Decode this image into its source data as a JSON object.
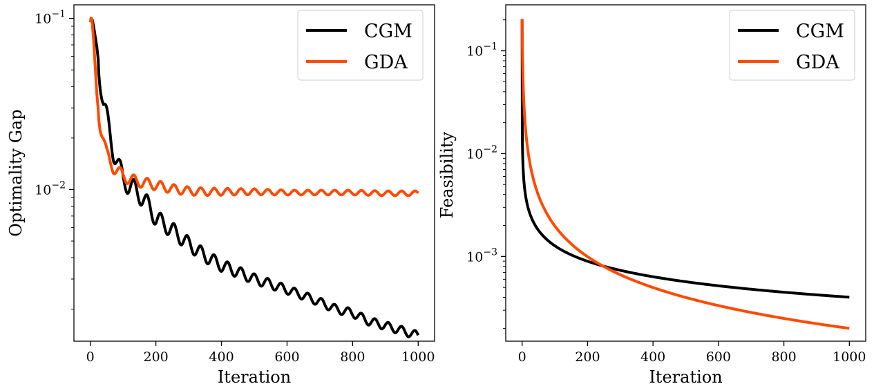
{
  "colors": {
    "CGM": "#000000",
    "GDA": "#ff4a00"
  },
  "chart_data": [
    {
      "type": "line",
      "xlabel": "Iteration",
      "ylabel": "Optimality Gap",
      "yscale": "log",
      "xlim": [
        -50,
        1050
      ],
      "ylim": [
        0.0013,
        0.12
      ],
      "xticks": [
        0,
        200,
        400,
        600,
        800,
        1000
      ],
      "yticks": [
        0.01,
        0.1
      ],
      "ytick_labels": [
        {
          "base": "10",
          "exp": "−2"
        },
        {
          "base": "10",
          "exp": "−1"
        }
      ],
      "legend_position": "top-right",
      "series": [
        {
          "name": "CGM",
          "x": [
            0,
            5,
            10,
            20,
            30,
            40,
            50,
            60,
            70,
            80,
            90,
            100,
            120,
            140,
            160,
            180,
            200,
            250,
            300,
            350,
            400,
            450,
            500,
            550,
            600,
            650,
            700,
            750,
            800,
            850,
            900,
            950,
            1000
          ],
          "y": [
            0.095,
            0.1,
            0.09,
            0.068,
            0.045,
            0.032,
            0.026,
            0.021,
            0.017,
            0.015,
            0.013,
            0.0115,
            0.0105,
            0.0098,
            0.0089,
            0.0079,
            0.0068,
            0.0058,
            0.0048,
            0.0041,
            0.0036,
            0.0033,
            0.003,
            0.0028,
            0.0026,
            0.0024,
            0.0022,
            0.002,
            0.0019,
            0.0017,
            0.0016,
            0.0015,
            0.0014
          ]
        },
        {
          "name": "GDA",
          "x": [
            0,
            3,
            6,
            10,
            15,
            20,
            25,
            30,
            40,
            50,
            60,
            70,
            80,
            90,
            100,
            120,
            140,
            160,
            180,
            200,
            250,
            300,
            350,
            400,
            450,
            500,
            600,
            700,
            800,
            900,
            1000
          ],
          "y": [
            0.095,
            0.103,
            0.094,
            0.075,
            0.052,
            0.036,
            0.028,
            0.024,
            0.02,
            0.016,
            0.0145,
            0.0135,
            0.013,
            0.0125,
            0.012,
            0.0115,
            0.0112,
            0.011,
            0.0108,
            0.0106,
            0.0101,
            0.0098,
            0.0097,
            0.0097,
            0.0097,
            0.0097,
            0.0096,
            0.0096,
            0.0096,
            0.0095,
            0.0095
          ]
        }
      ]
    },
    {
      "type": "line",
      "xlabel": "Iteration",
      "ylabel": "Feasibility",
      "yscale": "log",
      "xlim": [
        -50,
        1050
      ],
      "ylim": [
        0.00015,
        0.28
      ],
      "xticks": [
        0,
        200,
        400,
        600,
        800,
        1000
      ],
      "yticks": [
        0.001,
        0.01,
        0.1
      ],
      "ytick_labels": [
        {
          "base": "10",
          "exp": "−3"
        },
        {
          "base": "10",
          "exp": "−2"
        },
        {
          "base": "10",
          "exp": "−1"
        }
      ],
      "legend_position": "top-right",
      "series": [
        {
          "name": "CGM",
          "model": "a/sqrt(k+b)",
          "a": 0.0127,
          "b": 0.004
        },
        {
          "name": "GDA",
          "model": "a/(k+b)",
          "a": 0.2,
          "b": 0.98
        }
      ]
    }
  ]
}
